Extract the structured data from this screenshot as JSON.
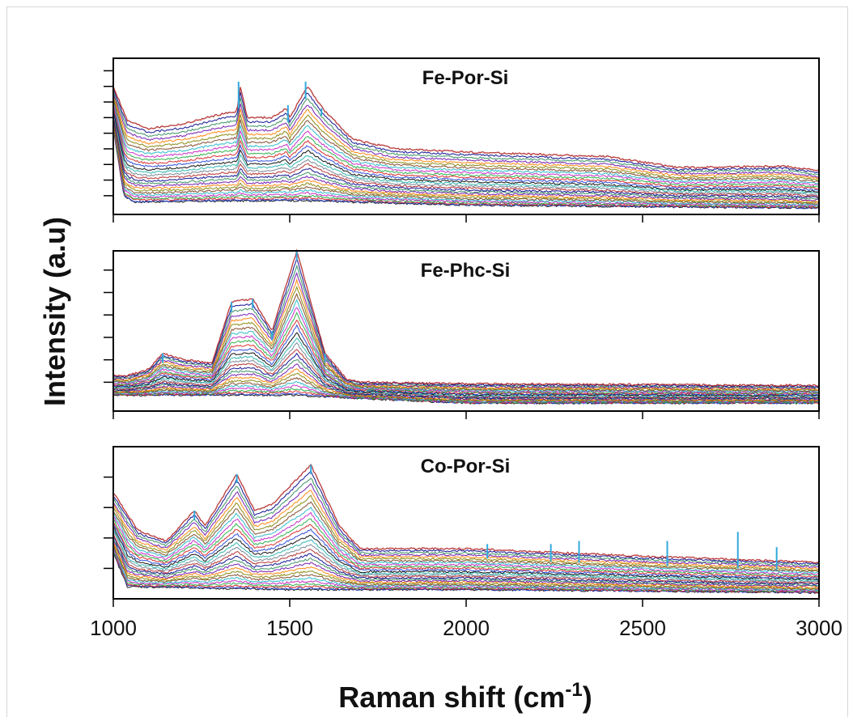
{
  "chart_data": {
    "type": "line",
    "xlabel": "Raman shift (cm",
    "xlabel_sup": "-1",
    "xlabel_close": ")",
    "ylabel": "Intensity (a.u)",
    "xlim": [
      1000,
      3000
    ],
    "x_ticks": [
      1000,
      1500,
      2000,
      2500,
      3000
    ],
    "x_tick_labels": [
      "1000",
      "1500",
      "2000",
      "2500",
      "3000"
    ],
    "grid": false,
    "panels": [
      {
        "title": "Fe-Por-Si",
        "ylim": [
          0,
          1
        ],
        "y_ticks": [
          0.12,
          0.22,
          0.32,
          0.42,
          0.52,
          0.62,
          0.72,
          0.82,
          0.92
        ],
        "envelope_top": {
          "x": [
            1000,
            1040,
            1100,
            1200,
            1300,
            1350,
            1360,
            1380,
            1450,
            1490,
            1500,
            1550,
            1600,
            1680,
            1800,
            2000,
            2400,
            2600,
            2900,
            3000
          ],
          "y": [
            0.82,
            0.6,
            0.55,
            0.58,
            0.64,
            0.66,
            0.82,
            0.62,
            0.62,
            0.68,
            0.62,
            0.82,
            0.66,
            0.48,
            0.42,
            0.4,
            0.37,
            0.3,
            0.31,
            0.28
          ]
        },
        "envelope_bottom": {
          "x": [
            1000,
            1030,
            1060,
            1500,
            2000,
            3000
          ],
          "y": [
            0.55,
            0.12,
            0.08,
            0.09,
            0.06,
            0.04
          ]
        },
        "peaks": [
          {
            "x": 1355,
            "y": 0.85
          },
          {
            "x": 1495,
            "y": 0.7
          },
          {
            "x": 1545,
            "y": 0.85
          },
          {
            "x": 1590,
            "y": 0.68
          }
        ]
      },
      {
        "title": "Fe-Phc-Si",
        "ylim": [
          0,
          1
        ],
        "y_ticks": [
          0.18,
          0.32,
          0.46,
          0.6,
          0.74,
          0.88
        ],
        "envelope_top": {
          "x": [
            1000,
            1040,
            1100,
            1140,
            1200,
            1280,
            1335,
            1395,
            1450,
            1520,
            1600,
            1660,
            1700,
            2000,
            3000
          ],
          "y": [
            0.22,
            0.22,
            0.26,
            0.36,
            0.32,
            0.3,
            0.68,
            0.7,
            0.5,
            1.0,
            0.36,
            0.2,
            0.18,
            0.17,
            0.16
          ]
        },
        "envelope_bottom": {
          "x": [
            1000,
            1500,
            2000,
            3000
          ],
          "y": [
            0.1,
            0.1,
            0.05,
            0.05
          ]
        },
        "peaks": [
          {
            "x": 1140,
            "y": 0.36
          },
          {
            "x": 1335,
            "y": 0.68
          },
          {
            "x": 1395,
            "y": 0.7
          },
          {
            "x": 1450,
            "y": 0.5
          },
          {
            "x": 1520,
            "y": 1.0
          },
          {
            "x": 1600,
            "y": 0.36
          }
        ]
      },
      {
        "title": "Co-Por-Si",
        "ylim": [
          0,
          1
        ],
        "y_ticks": [
          0.2,
          0.4,
          0.6,
          0.8
        ],
        "envelope_top": {
          "x": [
            1000,
            1070,
            1150,
            1230,
            1260,
            1350,
            1400,
            1450,
            1560,
            1640,
            1700,
            2000,
            2500,
            3000
          ],
          "y": [
            0.7,
            0.45,
            0.38,
            0.58,
            0.48,
            0.82,
            0.58,
            0.62,
            0.88,
            0.48,
            0.33,
            0.33,
            0.28,
            0.24
          ]
        },
        "envelope_bottom": {
          "x": [
            1000,
            1040,
            1500,
            2000,
            3000
          ],
          "y": [
            0.3,
            0.08,
            0.06,
            0.06,
            0.04
          ]
        },
        "peaks": [
          {
            "x": 1230,
            "y": 0.58
          },
          {
            "x": 1350,
            "y": 0.82
          },
          {
            "x": 1560,
            "y": 0.88
          },
          {
            "x": 2060,
            "y": 0.36
          },
          {
            "x": 2240,
            "y": 0.36
          },
          {
            "x": 2320,
            "y": 0.38
          },
          {
            "x": 2570,
            "y": 0.38
          },
          {
            "x": 2770,
            "y": 0.44
          },
          {
            "x": 2880,
            "y": 0.34
          }
        ]
      }
    ],
    "series_colors": [
      "#000000",
      "#1f3fd6",
      "#d61f1f",
      "#1faa3f",
      "#c41fc4",
      "#1fb5c4",
      "#7a3f1f",
      "#808000",
      "#ff7f00",
      "#6a0dad",
      "#2e8b57",
      "#00008b",
      "#b22222",
      "#708090",
      "#20b2aa"
    ]
  }
}
